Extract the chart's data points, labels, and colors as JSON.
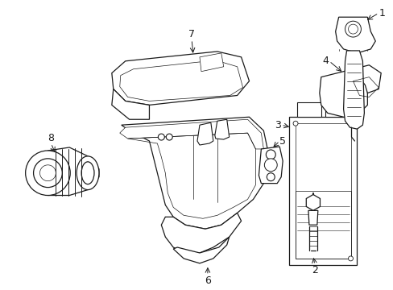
{
  "background_color": "#ffffff",
  "line_color": "#1a1a1a",
  "figure_width": 4.89,
  "figure_height": 3.6,
  "dpi": 100,
  "font_size": 9
}
